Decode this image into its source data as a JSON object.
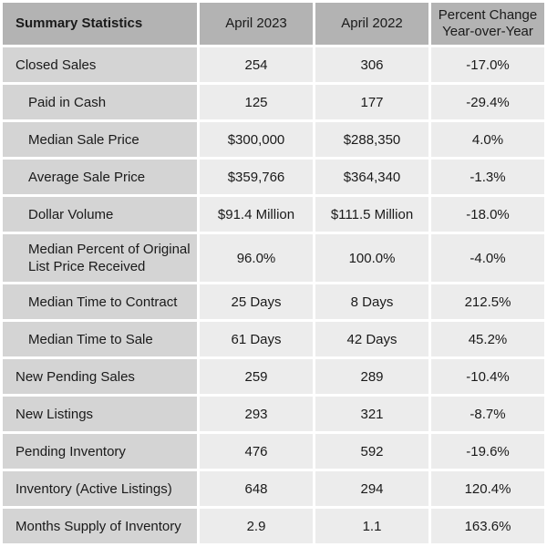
{
  "header": {
    "title": "Summary Statistics",
    "col_current": "April 2023",
    "col_previous": "April 2022",
    "col_change_line1": "Percent Change",
    "col_change_line2": "Year-over-Year"
  },
  "rows": [
    {
      "label": "Closed Sales",
      "label2": "",
      "current": "254",
      "previous": "306",
      "change": "-17.0%"
    },
    {
      "label": "Paid in Cash",
      "label2": "",
      "current": "125",
      "previous": "177",
      "change": "-29.4%"
    },
    {
      "label": "Median Sale Price",
      "label2": "",
      "current": "$300,000",
      "previous": "$288,350",
      "change": "4.0%"
    },
    {
      "label": "Average Sale Price",
      "label2": "",
      "current": "$359,766",
      "previous": "$364,340",
      "change": "-1.3%"
    },
    {
      "label": "Dollar Volume",
      "label2": "",
      "current": "$91.4 Million",
      "previous": "$111.5 Million",
      "change": "-18.0%"
    },
    {
      "label": "Median Percent of Original",
      "label2": "List Price Received",
      "current": "96.0%",
      "previous": "100.0%",
      "change": "-4.0%"
    },
    {
      "label": "Median Time to Contract",
      "label2": "",
      "current": "25 Days",
      "previous": "8 Days",
      "change": "212.5%"
    },
    {
      "label": "Median Time to Sale",
      "label2": "",
      "current": "61 Days",
      "previous": "42 Days",
      "change": "45.2%"
    },
    {
      "label": "New Pending Sales",
      "label2": "",
      "current": "259",
      "previous": "289",
      "change": "-10.4%"
    },
    {
      "label": "New Listings",
      "label2": "",
      "current": "293",
      "previous": "321",
      "change": "-8.7%"
    },
    {
      "label": "Pending Inventory",
      "label2": "",
      "current": "476",
      "previous": "592",
      "change": "-19.6%"
    },
    {
      "label": "Inventory (Active Listings)",
      "label2": "",
      "current": "648",
      "previous": "294",
      "change": "120.4%"
    },
    {
      "label": "Months Supply of Inventory",
      "label2": "",
      "current": "2.9",
      "previous": "1.1",
      "change": "163.6%"
    }
  ]
}
